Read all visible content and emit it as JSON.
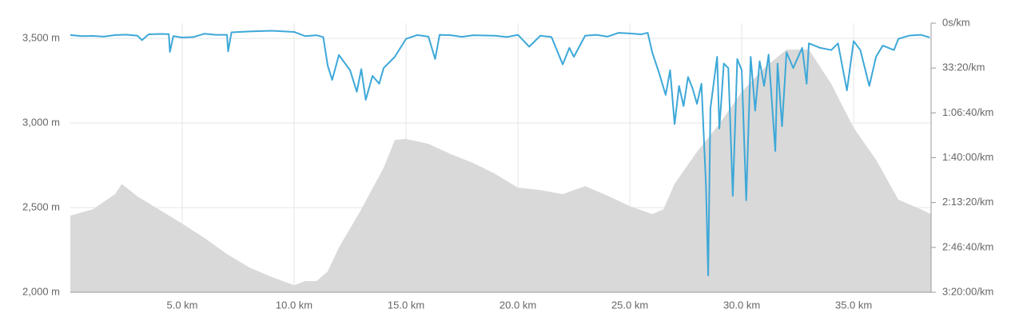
{
  "chart_data": {
    "type": "area-line",
    "xlim": [
      0,
      38.46
    ],
    "xticks": [
      {
        "value": 5,
        "label": "5.0 km"
      },
      {
        "value": 10,
        "label": "10.0 km"
      },
      {
        "value": 15,
        "label": "15.0 km"
      },
      {
        "value": 20,
        "label": "20.0 km"
      },
      {
        "value": 25,
        "label": "25.0 km"
      },
      {
        "value": 30,
        "label": "30.0 km"
      },
      {
        "value": 35,
        "label": "35.0 km"
      }
    ],
    "ylim": [
      2000,
      3590
    ],
    "yticks": [
      {
        "value": 2000,
        "label": "2,000 m"
      },
      {
        "value": 2500,
        "label": "2,500 m"
      },
      {
        "value": 3000,
        "label": "3,000 m"
      },
      {
        "value": 3500,
        "label": "3,500 m"
      }
    ],
    "y2lim": [
      12000,
      0
    ],
    "y2ticks": [
      {
        "value": 0,
        "label": "0s/km"
      },
      {
        "value": 2000,
        "label": "33:20/km"
      },
      {
        "value": 4000,
        "label": "1:06:40/km"
      },
      {
        "value": 6000,
        "label": "1:40:00/km"
      },
      {
        "value": 8000,
        "label": "2:13:20/km"
      },
      {
        "value": 10000,
        "label": "2:46:40/km"
      },
      {
        "value": 12000,
        "label": "3:20:00/km"
      }
    ],
    "grid": true,
    "series": [
      {
        "kind": "area",
        "color": "#d9d9d9",
        "x": [
          0,
          1,
          2,
          2.3,
          3,
          4,
          5,
          6,
          7,
          8,
          9,
          10,
          10.5,
          11,
          11.5,
          12,
          13,
          14,
          14.5,
          15,
          16,
          17,
          18,
          19,
          20,
          21,
          22,
          23,
          24,
          25,
          26,
          26.5,
          27,
          28,
          29,
          30,
          31,
          32,
          33,
          34,
          35,
          36,
          37,
          38,
          38.46
        ],
        "values": [
          2453,
          2490,
          2580,
          2640,
          2566,
          2486,
          2405,
          2320,
          2226,
          2146,
          2090,
          2042,
          2066,
          2066,
          2123,
          2264,
          2490,
          2736,
          2900,
          2906,
          2877,
          2816,
          2764,
          2698,
          2618,
          2604,
          2580,
          2627,
          2571,
          2509,
          2462,
          2490,
          2641,
          2830,
          2995,
          3184,
          3325,
          3434,
          3434,
          3231,
          2972,
          2783,
          2547,
          2490,
          2462
        ]
      },
      {
        "kind": "line",
        "axis": "y2",
        "color": "#3da8d8",
        "x": [
          0,
          0.5,
          1,
          1.5,
          2,
          2.5,
          3,
          3.2,
          3.5,
          4,
          4.4,
          4.45,
          4.6,
          5,
          5.5,
          6,
          6.5,
          7,
          7.05,
          7.2,
          8,
          9,
          10,
          10.5,
          11,
          11.3,
          11.5,
          11.7,
          12,
          12.5,
          12.8,
          13,
          13.2,
          13.5,
          13.8,
          14,
          14.5,
          15,
          15.5,
          16,
          16.3,
          16.5,
          17,
          17.5,
          18,
          19,
          19.5,
          20,
          20.5,
          21,
          21.5,
          22,
          22.3,
          22.5,
          23,
          23.5,
          24,
          24.5,
          25,
          25.5,
          25.8,
          26,
          26.3,
          26.6,
          26.8,
          27,
          27.2,
          27.4,
          27.6,
          27.8,
          28,
          28.2,
          28.4,
          28.5,
          28.6,
          28.9,
          29,
          29.2,
          29.4,
          29.6,
          29.8,
          30,
          30.2,
          30.4,
          30.6,
          30.8,
          31,
          31.2,
          31.5,
          31.6,
          31.8,
          32,
          32.3,
          32.7,
          32.9,
          33,
          33.5,
          34,
          34.3,
          34.7,
          35,
          35.3,
          35.7,
          36,
          36.3,
          36.8,
          37,
          37.5,
          38,
          38.4
        ],
        "values": [
          530,
          580,
          570,
          600,
          530,
          510,
          560,
          760,
          500,
          480,
          490,
          1280,
          580,
          640,
          620,
          470,
          520,
          520,
          1260,
          410,
          370,
          340,
          390,
          580,
          540,
          620,
          1890,
          2530,
          1420,
          2100,
          3060,
          2050,
          3420,
          2350,
          2700,
          2000,
          1500,
          700,
          530,
          600,
          1600,
          520,
          540,
          610,
          540,
          560,
          620,
          520,
          1050,
          560,
          620,
          1840,
          1100,
          1500,
          560,
          520,
          600,
          430,
          460,
          500,
          430,
          1300,
          2200,
          3200,
          2100,
          4500,
          2800,
          3700,
          2400,
          2900,
          3600,
          2700,
          7200,
          11250,
          3800,
          1500,
          4700,
          1800,
          2000,
          7700,
          1600,
          2100,
          7900,
          1500,
          3900,
          1700,
          2800,
          1400,
          5700,
          1800,
          4600,
          1300,
          2000,
          1100,
          2700,
          900,
          1100,
          1200,
          900,
          3000,
          800,
          1200,
          2800,
          1500,
          1000,
          1200,
          700,
          550,
          520,
          640
        ]
      }
    ]
  }
}
